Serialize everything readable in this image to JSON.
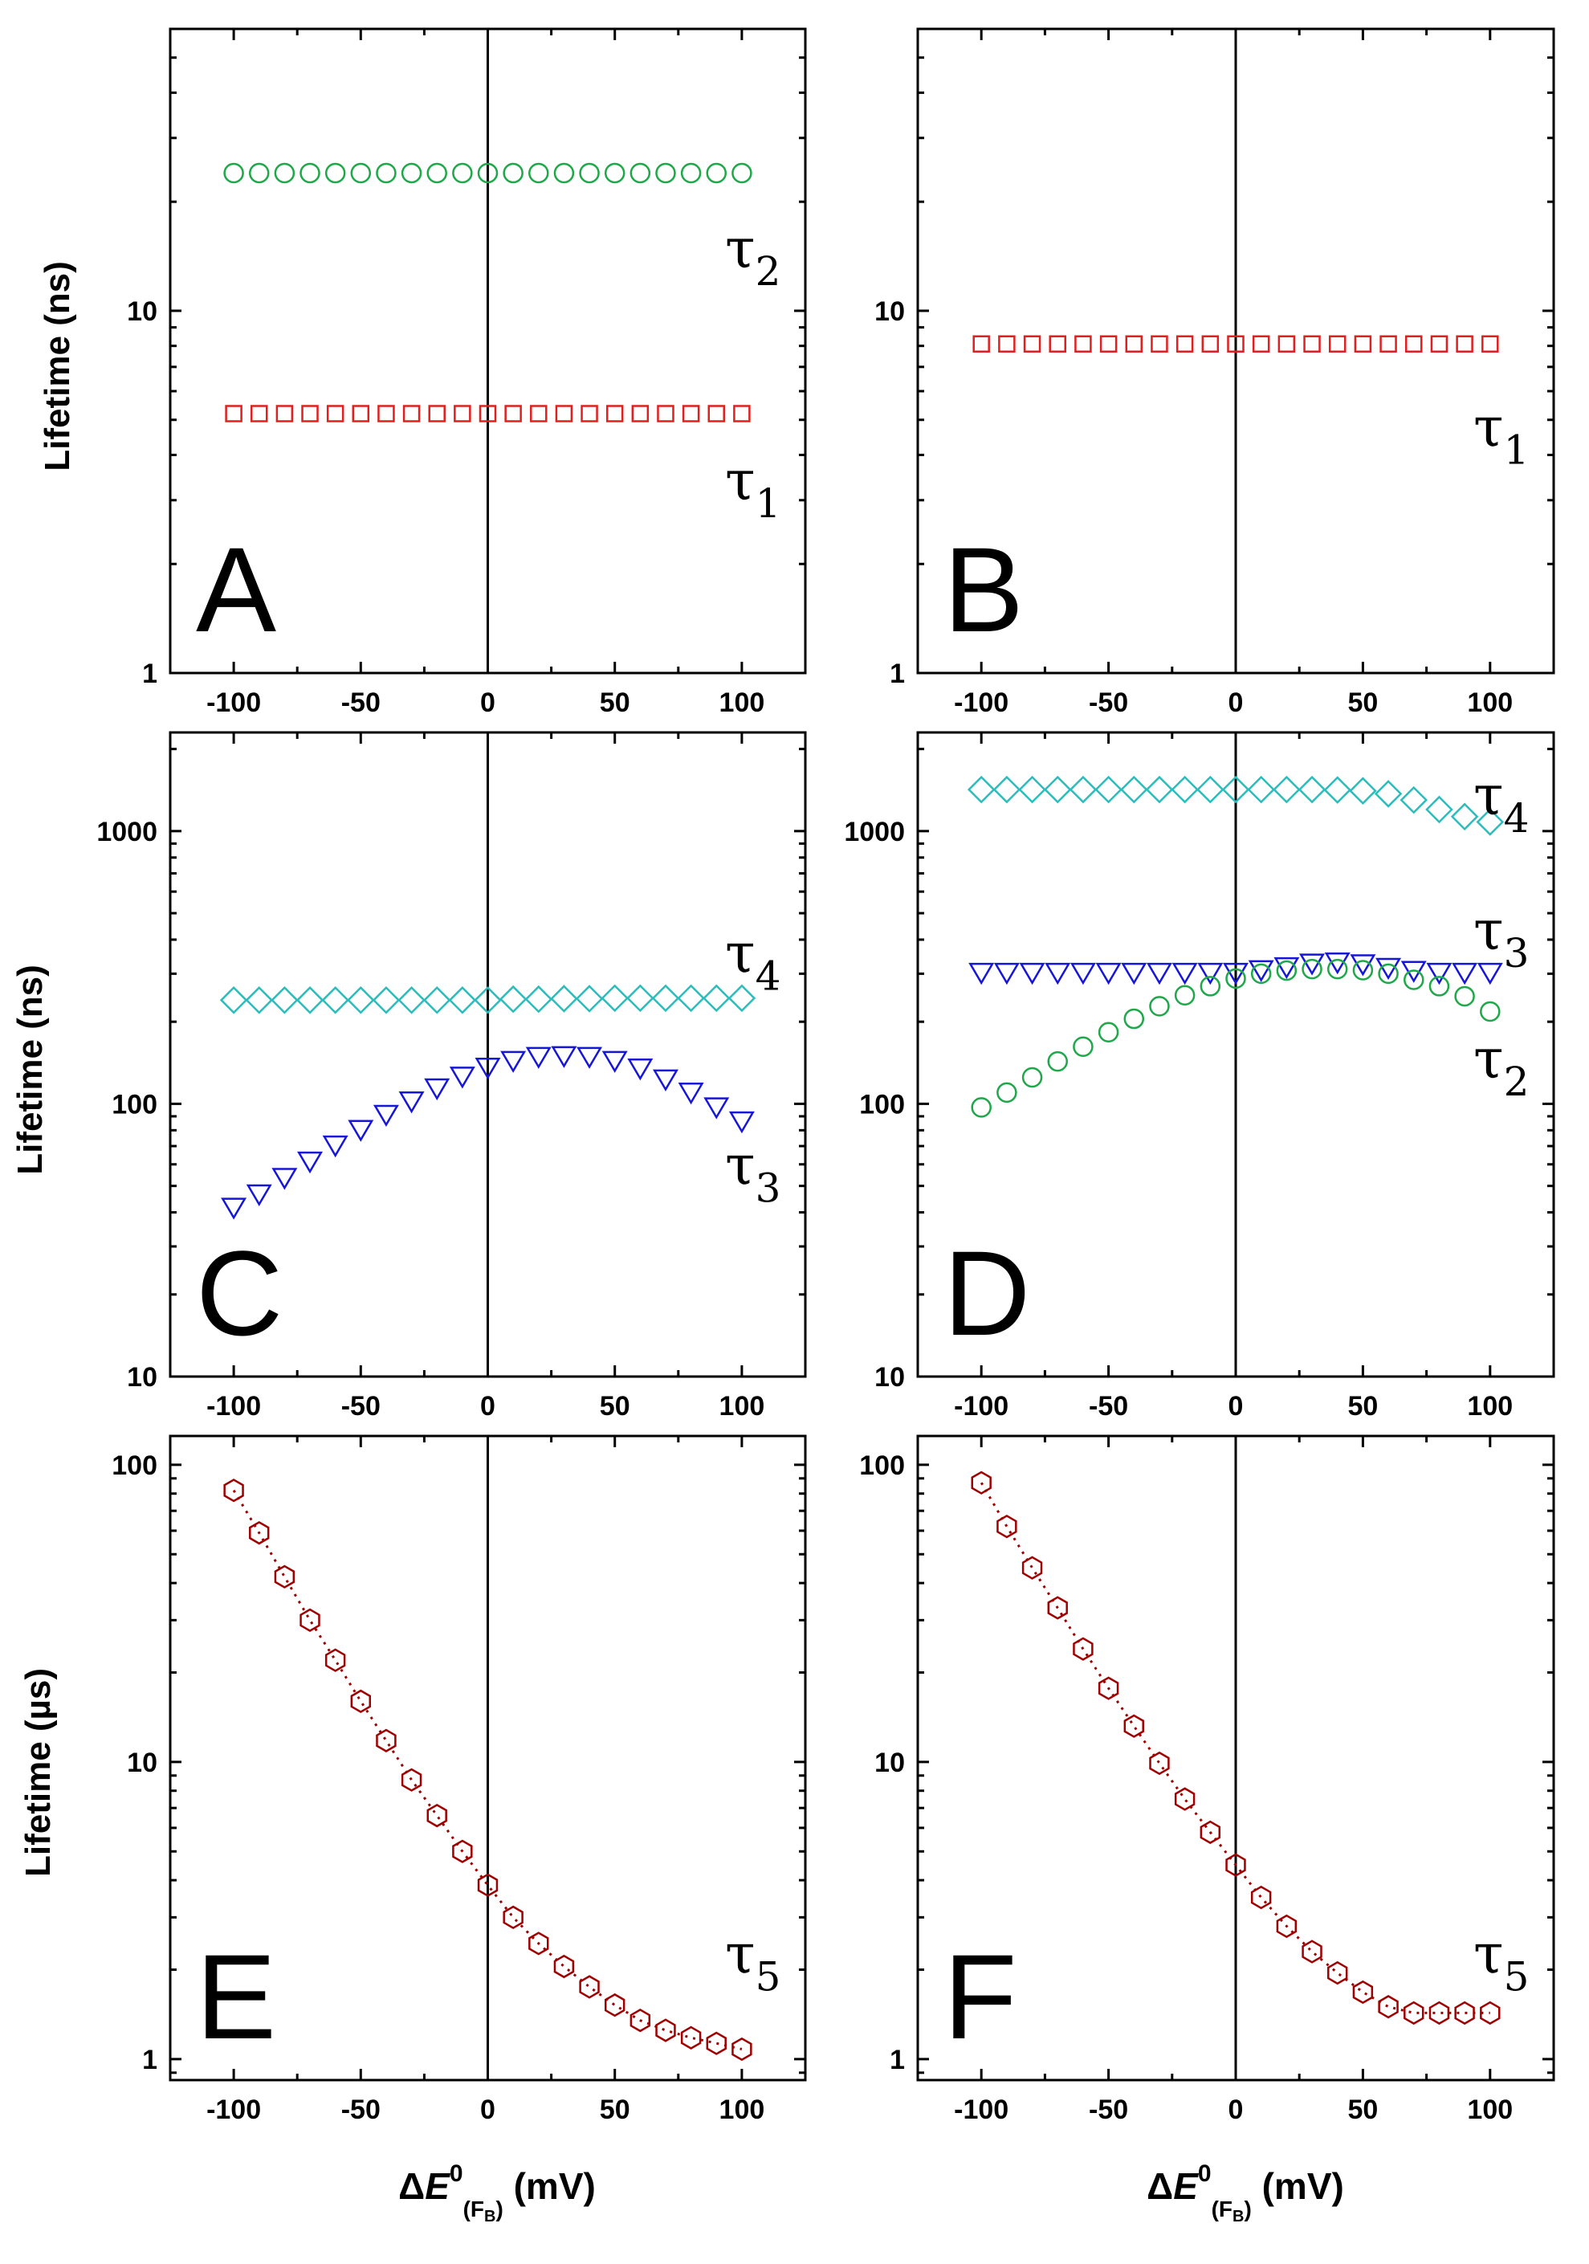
{
  "chart_data": [
    {
      "id": "A",
      "panel_label": "A",
      "type": "scatter",
      "ylabel": "Lifetime (ns)",
      "yscale": "log",
      "ylim": [
        1,
        60
      ],
      "yticks": [
        {
          "v": 1,
          "label": "1"
        },
        {
          "v": 10,
          "label": "10"
        }
      ],
      "x": [
        -100,
        -90,
        -80,
        -70,
        -60,
        -50,
        -40,
        -30,
        -20,
        -10,
        0,
        10,
        20,
        30,
        40,
        50,
        60,
        70,
        80,
        90,
        100
      ],
      "xticks": [
        {
          "v": -100,
          "label": "-100"
        },
        {
          "v": -50,
          "label": "-50"
        },
        {
          "v": 0,
          "label": "0"
        },
        {
          "v": 50,
          "label": "50"
        },
        {
          "v": 100,
          "label": "100"
        }
      ],
      "series": [
        {
          "name": "τ2",
          "marker": "circle",
          "color": "#1fa84a",
          "values": [
            24,
            24,
            24,
            24,
            24,
            24,
            24,
            24,
            24,
            24,
            24,
            24,
            24,
            24,
            24,
            24,
            24,
            24,
            24,
            24,
            24
          ]
        },
        {
          "name": "τ1",
          "marker": "square",
          "color": "#e01f1f",
          "values": [
            5.2,
            5.2,
            5.2,
            5.2,
            5.2,
            5.2,
            5.2,
            5.2,
            5.2,
            5.2,
            5.2,
            5.2,
            5.2,
            5.2,
            5.2,
            5.2,
            5.2,
            5.2,
            5.2,
            5.2,
            5.2
          ]
        }
      ],
      "annotations": [
        {
          "base": "τ",
          "sub": "2",
          "x": 100,
          "y": 14
        },
        {
          "base": "τ",
          "sub": "1",
          "x": 100,
          "y": 3.2
        }
      ]
    },
    {
      "id": "B",
      "panel_label": "B",
      "type": "scatter",
      "ylabel": "",
      "yscale": "log",
      "ylim": [
        1,
        60
      ],
      "yticks": [
        {
          "v": 1,
          "label": "1"
        },
        {
          "v": 10,
          "label": "10"
        }
      ],
      "x": [
        -100,
        -90,
        -80,
        -70,
        -60,
        -50,
        -40,
        -30,
        -20,
        -10,
        0,
        10,
        20,
        30,
        40,
        50,
        60,
        70,
        80,
        90,
        100
      ],
      "xticks": [
        {
          "v": -100,
          "label": "-100"
        },
        {
          "v": -50,
          "label": "-50"
        },
        {
          "v": 0,
          "label": "0"
        },
        {
          "v": 50,
          "label": "50"
        },
        {
          "v": 100,
          "label": "100"
        }
      ],
      "series": [
        {
          "name": "τ1",
          "marker": "square",
          "color": "#e01f1f",
          "values": [
            8.1,
            8.1,
            8.1,
            8.1,
            8.1,
            8.1,
            8.1,
            8.1,
            8.1,
            8.1,
            8.1,
            8.1,
            8.1,
            8.1,
            8.1,
            8.1,
            8.1,
            8.1,
            8.1,
            8.1,
            8.1
          ]
        }
      ],
      "annotations": [
        {
          "base": "τ",
          "sub": "1",
          "x": 100,
          "y": 4.5
        }
      ]
    },
    {
      "id": "C",
      "panel_label": "C",
      "type": "scatter",
      "ylabel": "Lifetime (ns)",
      "yscale": "log",
      "ylim": [
        10,
        2300
      ],
      "yticks": [
        {
          "v": 10,
          "label": "10"
        },
        {
          "v": 100,
          "label": "100"
        },
        {
          "v": 1000,
          "label": "1000"
        }
      ],
      "x": [
        -100,
        -90,
        -80,
        -70,
        -60,
        -50,
        -40,
        -30,
        -20,
        -10,
        0,
        10,
        20,
        30,
        40,
        50,
        60,
        70,
        80,
        90,
        100
      ],
      "xticks": [
        {
          "v": -100,
          "label": "-100"
        },
        {
          "v": -50,
          "label": "-50"
        },
        {
          "v": 0,
          "label": "0"
        },
        {
          "v": 50,
          "label": "50"
        },
        {
          "v": 100,
          "label": "100"
        }
      ],
      "series": [
        {
          "name": "τ4",
          "marker": "diamond",
          "color": "#2bbcbc",
          "values": [
            240,
            240,
            240,
            240,
            240,
            240,
            240,
            240,
            240,
            240,
            240,
            242,
            242,
            243,
            243,
            244,
            244,
            244,
            244,
            244,
            244
          ]
        },
        {
          "name": "τ3",
          "marker": "triangle-down",
          "color": "#1616d8",
          "values": [
            42,
            47,
            54,
            62,
            71,
            81,
            92,
            103,
            115,
            127,
            137,
            145,
            150,
            151,
            150,
            145,
            136,
            124,
            111,
            98,
            87
          ]
        }
      ],
      "annotations": [
        {
          "base": "τ",
          "sub": "4",
          "x": 100,
          "y": 330
        },
        {
          "base": "τ",
          "sub": "3",
          "x": 100,
          "y": 55
        }
      ]
    },
    {
      "id": "D",
      "panel_label": "D",
      "type": "scatter",
      "ylabel": "",
      "yscale": "log",
      "ylim": [
        10,
        2300
      ],
      "yticks": [
        {
          "v": 10,
          "label": "10"
        },
        {
          "v": 100,
          "label": "100"
        },
        {
          "v": 1000,
          "label": "1000"
        }
      ],
      "x": [
        -100,
        -90,
        -80,
        -70,
        -60,
        -50,
        -40,
        -30,
        -20,
        -10,
        0,
        10,
        20,
        30,
        40,
        50,
        60,
        70,
        80,
        90,
        100
      ],
      "xticks": [
        {
          "v": -100,
          "label": "-100"
        },
        {
          "v": -50,
          "label": "-50"
        },
        {
          "v": 0,
          "label": "0"
        },
        {
          "v": 50,
          "label": "50"
        },
        {
          "v": 100,
          "label": "100"
        }
      ],
      "series": [
        {
          "name": "τ4",
          "marker": "diamond",
          "color": "#2bbcbc",
          "values": [
            1420,
            1420,
            1420,
            1420,
            1420,
            1420,
            1420,
            1420,
            1420,
            1420,
            1420,
            1420,
            1420,
            1420,
            1415,
            1405,
            1370,
            1300,
            1200,
            1130,
            1080
          ]
        },
        {
          "name": "τ3",
          "marker": "triangle-down",
          "color": "#1616d8",
          "values": [
            305,
            305,
            305,
            305,
            305,
            305,
            305,
            305,
            305,
            305,
            305,
            312,
            320,
            330,
            333,
            328,
            318,
            310,
            305,
            305,
            305
          ]
        },
        {
          "name": "τ2",
          "marker": "circle",
          "color": "#1fa84a",
          "values": [
            97,
            110,
            125,
            143,
            162,
            183,
            205,
            228,
            250,
            270,
            288,
            300,
            308,
            312,
            312,
            309,
            300,
            285,
            270,
            248,
            218
          ]
        }
      ],
      "annotations": [
        {
          "base": "τ",
          "sub": "4",
          "x": 100,
          "y": 1250
        },
        {
          "base": "τ",
          "sub": "3",
          "x": 100,
          "y": 400
        },
        {
          "base": "τ",
          "sub": "2",
          "x": 100,
          "y": 135
        }
      ]
    },
    {
      "id": "E",
      "panel_label": "E",
      "type": "scatter",
      "ylabel": "Lifetime (µs)",
      "xlabel": "ΔE0(FB) (mV)",
      "yscale": "log",
      "ylim": [
        0.85,
        125
      ],
      "yticks": [
        {
          "v": 1,
          "label": "1"
        },
        {
          "v": 10,
          "label": "10"
        },
        {
          "v": 100,
          "label": "100"
        }
      ],
      "x": [
        -100,
        -90,
        -80,
        -70,
        -60,
        -50,
        -40,
        -30,
        -20,
        -10,
        0,
        10,
        20,
        30,
        40,
        50,
        60,
        70,
        80,
        90,
        100
      ],
      "xticks": [
        {
          "v": -100,
          "label": "-100"
        },
        {
          "v": -50,
          "label": "-50"
        },
        {
          "v": 0,
          "label": "0"
        },
        {
          "v": 50,
          "label": "50"
        },
        {
          "v": 100,
          "label": "100"
        }
      ],
      "series": [
        {
          "name": "τ5",
          "marker": "hexagon",
          "color": "#a00000",
          "line": "dotted",
          "values": [
            82,
            59,
            42,
            30,
            22,
            16,
            11.8,
            8.7,
            6.6,
            5,
            3.85,
            3,
            2.45,
            2.05,
            1.75,
            1.52,
            1.35,
            1.25,
            1.18,
            1.13,
            1.08
          ]
        }
      ],
      "annotations": [
        {
          "base": "τ",
          "sub": "5",
          "x": 100,
          "y": 2.1
        }
      ]
    },
    {
      "id": "F",
      "panel_label": "F",
      "type": "scatter",
      "ylabel": "",
      "xlabel": "ΔE0(FB) (mV)",
      "yscale": "log",
      "ylim": [
        0.85,
        125
      ],
      "yticks": [
        {
          "v": 1,
          "label": "1"
        },
        {
          "v": 10,
          "label": "10"
        },
        {
          "v": 100,
          "label": "100"
        }
      ],
      "x": [
        -100,
        -90,
        -80,
        -70,
        -60,
        -50,
        -40,
        -30,
        -20,
        -10,
        0,
        10,
        20,
        30,
        40,
        50,
        60,
        70,
        80,
        90,
        100
      ],
      "xticks": [
        {
          "v": -100,
          "label": "-100"
        },
        {
          "v": -50,
          "label": "-50"
        },
        {
          "v": 0,
          "label": "0"
        },
        {
          "v": 50,
          "label": "50"
        },
        {
          "v": 100,
          "label": "100"
        }
      ],
      "series": [
        {
          "name": "τ5",
          "marker": "hexagon",
          "color": "#a00000",
          "line": "dotted",
          "values": [
            87,
            62,
            45,
            33,
            24,
            17.7,
            13.2,
            9.9,
            7.5,
            5.8,
            4.5,
            3.5,
            2.8,
            2.3,
            1.95,
            1.68,
            1.5,
            1.43,
            1.43,
            1.43,
            1.43
          ]
        }
      ],
      "annotations": [
        {
          "base": "τ",
          "sub": "5",
          "x": 100,
          "y": 2.1
        }
      ]
    }
  ],
  "x_axis_label": {
    "delta": "Δ",
    "E": "E",
    "sup": "0",
    "sub": "(F",
    "subsub": "B",
    "close": ")",
    "unit": " (mV)"
  },
  "axis_titles": {
    "top": "Lifetime (ns)",
    "middle": "Lifetime (ns)",
    "bottom": "Lifetime (µs)"
  }
}
